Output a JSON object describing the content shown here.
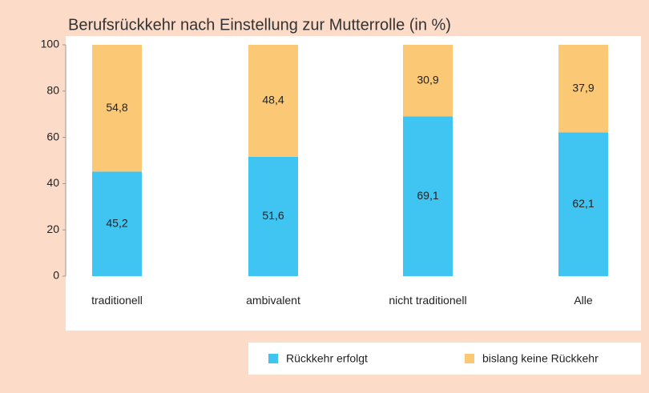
{
  "chart_data": {
    "type": "stacked_bar",
    "title": "Berufsrückkehr nach Einstellung zur Mutterrolle (in %)",
    "categories": [
      "traditionell",
      "ambivalent",
      "nicht traditionell",
      "Alle"
    ],
    "series": [
      {
        "name": "Rückkehr erfolgt",
        "color": "#40c4f1",
        "values": [
          45.2,
          51.6,
          69.1,
          62.1
        ],
        "value_labels": [
          "45,2",
          "51,6",
          "69,1",
          "62,1"
        ]
      },
      {
        "name": "bislang keine Rückkehr",
        "color": "#fbc875",
        "values": [
          54.8,
          48.4,
          30.9,
          37.9
        ],
        "value_labels": [
          "54,8",
          "48,4",
          "30,9",
          "37,9"
        ]
      }
    ],
    "ylim": [
      0,
      100
    ],
    "yticks": [
      0,
      20,
      40,
      60,
      80,
      100
    ],
    "grid": false,
    "legend": "bottom-right"
  }
}
